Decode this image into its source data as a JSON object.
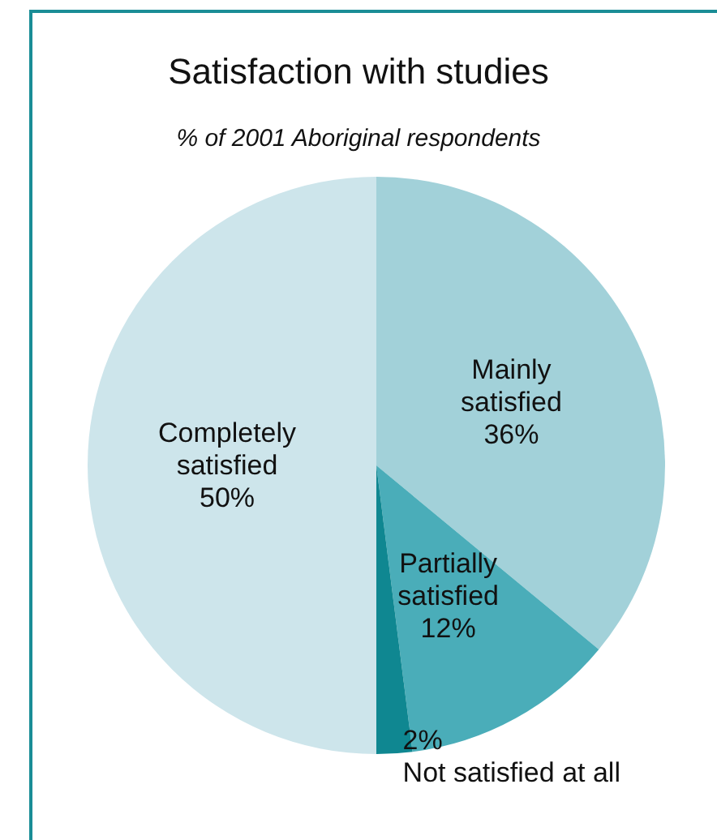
{
  "chart_data": {
    "type": "pie",
    "title": "Satisfaction with studies",
    "subtitle": "% of 2001 Aboriginal respondents",
    "categories": [
      "Mainly satisfied",
      "Partially satisfied",
      "Not satisfied at all",
      "Completely satisfied"
    ],
    "values": [
      36,
      12,
      2,
      50
    ],
    "colors": [
      "#a2d1d9",
      "#4aadb9",
      "#0f8791",
      "#cde5eb"
    ],
    "value_labels": [
      "36%",
      "12%",
      "2%",
      "50%"
    ],
    "legend": false
  }
}
